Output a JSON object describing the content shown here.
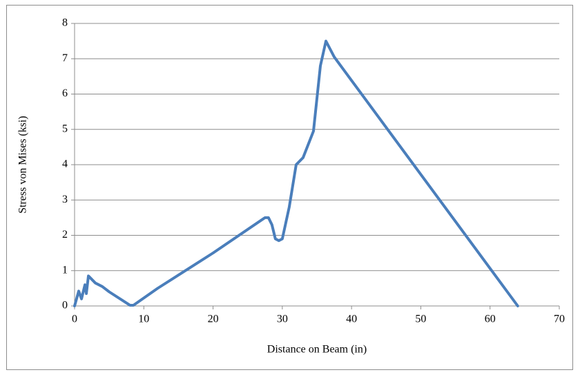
{
  "chart_data": {
    "type": "line",
    "x_label": "Distance on Beam (in)",
    "y_label": "Stress von Mises (ksi)",
    "x": [
      0,
      0.6,
      1.0,
      1.5,
      1.7,
      2.0,
      3,
      4,
      5,
      8,
      8.5,
      12,
      20,
      27.5,
      28,
      28.5,
      29,
      29.5,
      30,
      31,
      32,
      33,
      34.5,
      35.5,
      36.3,
      37.5,
      64
    ],
    "series": [
      {
        "color": "#4a7ebb",
        "values": [
          0,
          0.42,
          0.2,
          0.6,
          0.35,
          0.85,
          0.65,
          0.55,
          0.4,
          0.02,
          0.02,
          0.5,
          1.5,
          2.5,
          2.5,
          2.3,
          1.9,
          1.85,
          1.9,
          2.8,
          4.0,
          4.2,
          4.95,
          6.8,
          7.5,
          7.05,
          0
        ]
      }
    ],
    "xlim": [
      0,
      70
    ],
    "xticks": [
      0,
      10,
      20,
      30,
      40,
      50,
      60,
      70
    ],
    "ylim": [
      0,
      8
    ],
    "yticks": [
      0,
      1,
      2,
      3,
      4,
      5,
      6,
      7,
      8
    ],
    "grid": true
  }
}
